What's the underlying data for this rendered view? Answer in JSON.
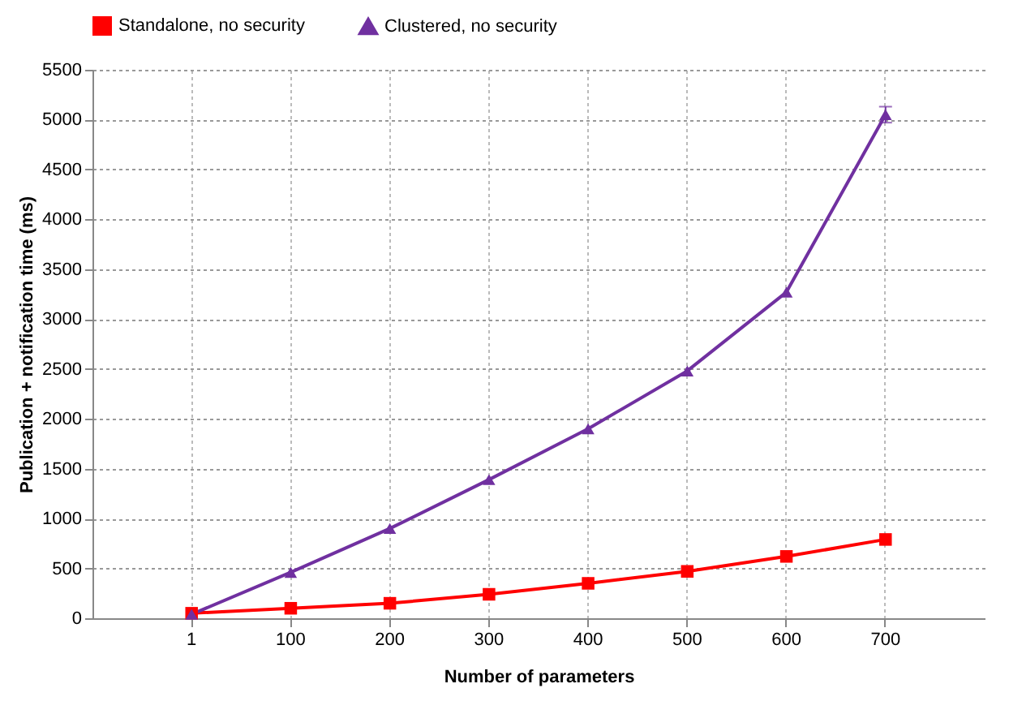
{
  "chart_data": {
    "type": "line",
    "xlabel": "Number of parameters",
    "ylabel": "Publication + notification time (ms)",
    "categories": [
      "1",
      "100",
      "200",
      "300",
      "400",
      "500",
      "600",
      "700"
    ],
    "series": [
      {
        "name": "Standalone, no security",
        "color": "#ff0000",
        "marker": "square",
        "values": [
          50,
          100,
          150,
          240,
          350,
          470,
          620,
          790
        ]
      },
      {
        "name": "Clustered, no security",
        "color": "#7030a0",
        "marker": "triangle",
        "values": [
          40,
          460,
          900,
          1390,
          1900,
          2480,
          3270,
          5050
        ],
        "errors": [
          null,
          null,
          null,
          null,
          null,
          null,
          null,
          80
        ]
      }
    ],
    "ylim": [
      0,
      5500
    ],
    "yticks": [
      0,
      500,
      1000,
      1500,
      2000,
      2500,
      3000,
      3500,
      4000,
      4500,
      5000,
      5500
    ],
    "grid": true,
    "legend": "top",
    "line_style": "solid"
  }
}
